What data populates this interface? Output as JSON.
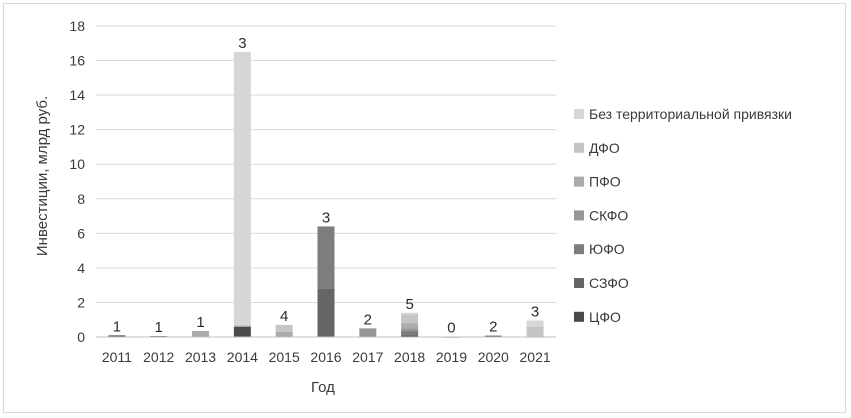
{
  "chart_data": {
    "type": "bar",
    "stacked": true,
    "xlabel": "Год",
    "ylabel": "Инвестиции, млрд руб.",
    "ylim": [
      0,
      18
    ],
    "yticks": [
      0,
      2,
      4,
      6,
      8,
      10,
      12,
      14,
      16,
      18
    ],
    "grid": true,
    "legend_position": "right",
    "categories": [
      "2011",
      "2012",
      "2013",
      "2014",
      "2015",
      "2016",
      "2017",
      "2018",
      "2019",
      "2020",
      "2021"
    ],
    "series": [
      {
        "name": "ЦФО",
        "color": "#4a4a4a",
        "values": [
          0,
          0.05,
          0,
          0.6,
          0,
          0,
          0,
          0.1,
          0.02,
          0,
          0
        ]
      },
      {
        "name": "СЗФО",
        "color": "#666666",
        "values": [
          0.1,
          0,
          0,
          0,
          0,
          2.8,
          0,
          0,
          0,
          0.08,
          0
        ]
      },
      {
        "name": "ЮФО",
        "color": "#7d7d7d",
        "values": [
          0,
          0,
          0,
          0,
          0,
          3.6,
          0,
          0.25,
          0,
          0,
          0
        ]
      },
      {
        "name": "СКФО",
        "color": "#969696",
        "values": [
          0,
          0,
          0,
          0,
          0,
          0,
          0.5,
          0.15,
          0,
          0,
          0
        ]
      },
      {
        "name": "ПФО",
        "color": "#ababab",
        "values": [
          0,
          0,
          0.35,
          0,
          0.3,
          0,
          0,
          0.3,
          0,
          0,
          0
        ]
      },
      {
        "name": "ДФО",
        "color": "#c4c4c4",
        "values": [
          0,
          0,
          0,
          0.1,
          0.4,
          0,
          0,
          0.5,
          0,
          0,
          0.6
        ]
      },
      {
        "name": "Без территориальной привязки",
        "color": "#d6d6d6",
        "values": [
          0,
          0,
          0,
          15.8,
          0,
          0,
          0,
          0.1,
          0,
          0,
          0.35
        ]
      }
    ],
    "data_labels": [
      "1",
      "1",
      "1",
      "3",
      "4",
      "3",
      "2",
      "5",
      "0",
      "2",
      "3"
    ]
  }
}
